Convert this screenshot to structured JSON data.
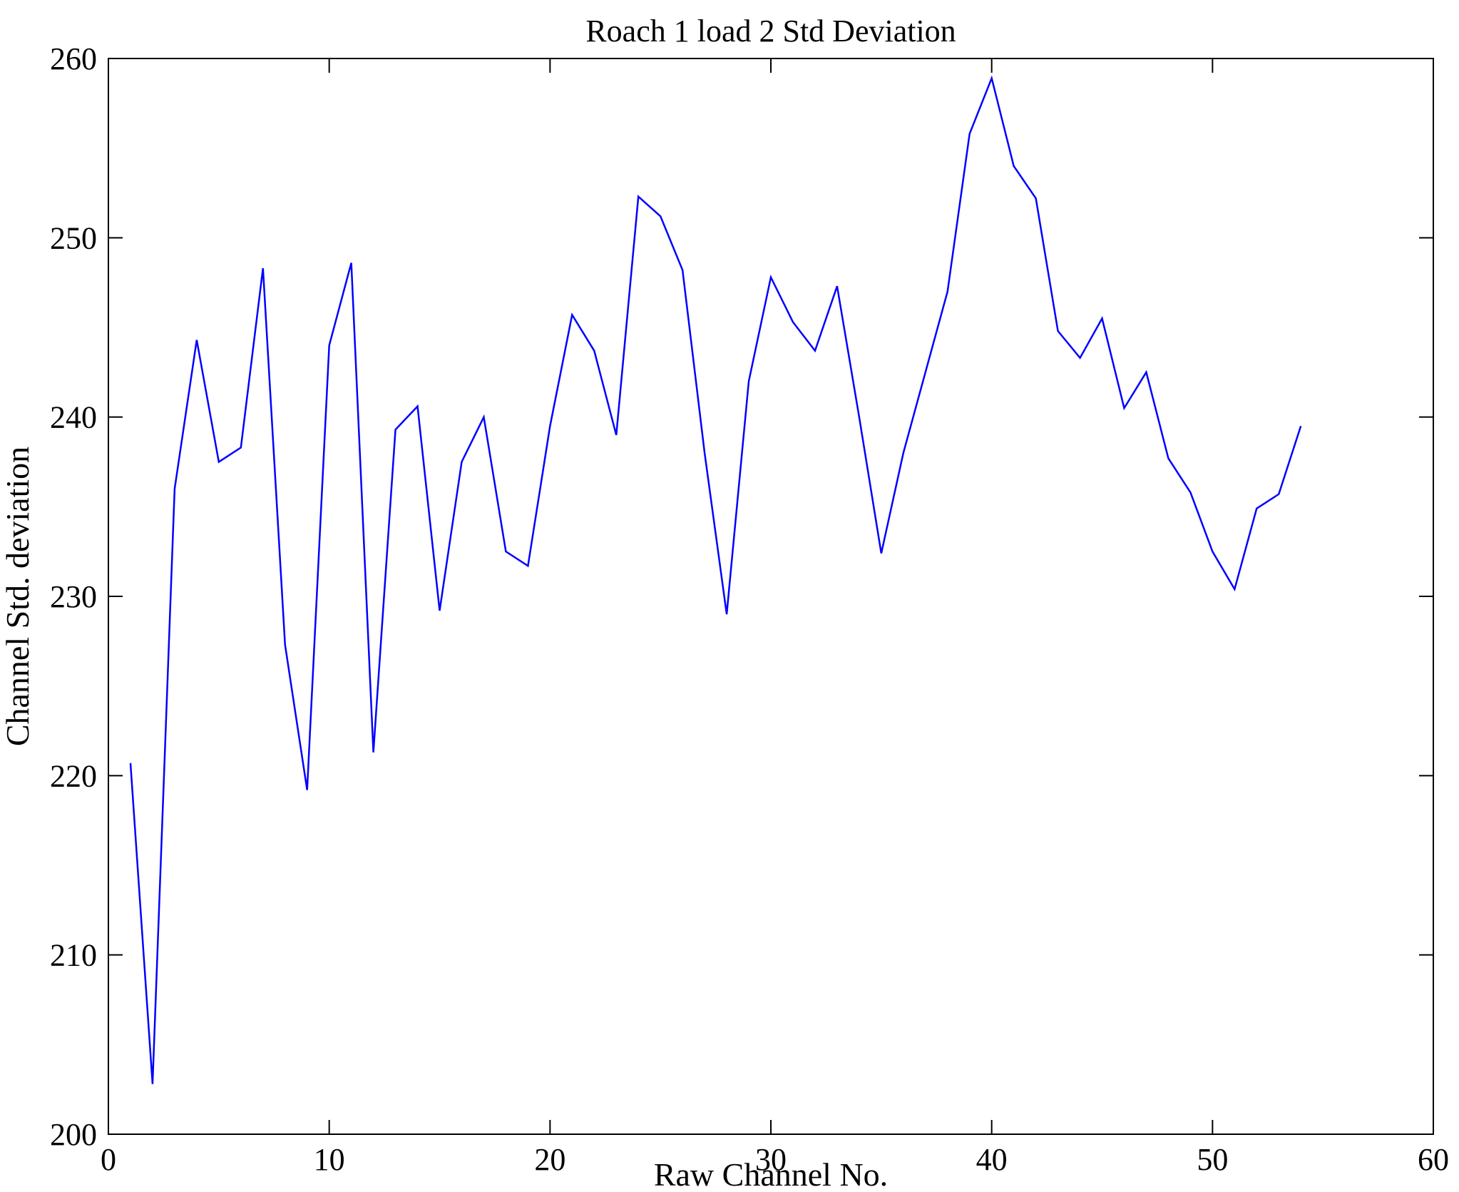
{
  "chart_data": {
    "type": "line",
    "title": "Roach 1 load 2 Std Deviation",
    "xlabel": "Raw Channel No.",
    "ylabel": "Channel Std. deviation",
    "xlim": [
      0,
      60
    ],
    "ylim": [
      200,
      260
    ],
    "xticks": [
      0,
      10,
      20,
      30,
      40,
      50,
      60
    ],
    "yticks": [
      200,
      210,
      220,
      230,
      240,
      250,
      260
    ],
    "grid": "off",
    "legend": "none",
    "line_color": "#0000ff",
    "axis_color": "#000000",
    "background_color": "#ffffff",
    "x": [
      1,
      2,
      3,
      4,
      5,
      6,
      7,
      8,
      9,
      10,
      11,
      12,
      13,
      14,
      15,
      16,
      17,
      18,
      19,
      20,
      21,
      22,
      23,
      24,
      25,
      26,
      27,
      28,
      29,
      30,
      31,
      32,
      33,
      34,
      35,
      36,
      37,
      38,
      39,
      40,
      41,
      42,
      43,
      44,
      45,
      46,
      47,
      48,
      49,
      50,
      51,
      52,
      53,
      54
    ],
    "y": [
      220.7,
      202.8,
      236.0,
      244.3,
      237.5,
      238.3,
      248.3,
      227.3,
      219.2,
      244.0,
      248.6,
      221.3,
      239.3,
      240.6,
      229.2,
      237.5,
      240.0,
      232.5,
      231.7,
      239.5,
      245.7,
      243.7,
      239.0,
      252.3,
      251.2,
      248.2,
      238.0,
      229.0,
      242.0,
      247.8,
      245.3,
      243.7,
      247.3,
      240.0,
      232.4,
      238.0,
      242.5,
      247.0,
      255.8,
      258.9,
      254.0,
      252.2,
      244.8,
      243.3,
      245.5,
      240.5,
      242.5,
      237.7,
      235.8,
      232.5,
      230.4,
      234.9,
      235.7,
      239.5
    ]
  }
}
